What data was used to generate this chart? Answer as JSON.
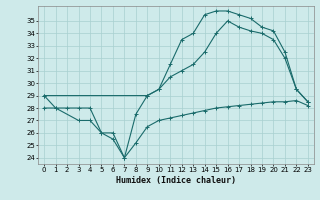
{
  "xlabel": "Humidex (Indice chaleur)",
  "background_color": "#ceeaea",
  "grid_color": "#a8d0d0",
  "line_color": "#1a6b6b",
  "xlim": [
    -0.5,
    23.5
  ],
  "ylim": [
    23.5,
    36.2
  ],
  "xticks": [
    0,
    1,
    2,
    3,
    4,
    5,
    6,
    7,
    8,
    9,
    10,
    11,
    12,
    13,
    14,
    15,
    16,
    17,
    18,
    19,
    20,
    21,
    22,
    23
  ],
  "yticks": [
    24,
    25,
    26,
    27,
    28,
    29,
    30,
    31,
    32,
    33,
    34,
    35
  ],
  "line1_x": [
    0,
    1,
    3,
    4,
    5,
    6,
    7,
    8,
    9,
    10,
    11,
    12,
    13,
    14,
    15,
    16,
    17,
    18,
    19,
    20,
    21,
    22,
    23
  ],
  "line1_y": [
    29,
    28,
    27,
    27,
    26,
    26,
    24,
    27.5,
    29,
    29.5,
    31.5,
    33.5,
    34,
    35.5,
    35.8,
    35.8,
    35.5,
    35.2,
    34.5,
    34.2,
    32.5,
    29.5,
    28.5
  ],
  "line2_x": [
    0,
    9,
    10,
    11,
    12,
    13,
    14,
    15,
    16,
    17,
    18,
    19,
    20,
    21,
    22,
    23
  ],
  "line2_y": [
    29,
    29,
    29.5,
    30.5,
    31,
    31.5,
    32.5,
    34,
    35,
    34.5,
    34.2,
    34.0,
    33.5,
    32.0,
    29.5,
    28.5
  ],
  "line3_x": [
    0,
    1,
    2,
    3,
    4,
    5,
    6,
    7,
    8,
    9,
    10,
    11,
    12,
    13,
    14,
    15,
    16,
    17,
    18,
    19,
    20,
    21,
    22,
    23
  ],
  "line3_y": [
    28,
    28,
    28,
    28,
    28,
    26,
    25.5,
    24,
    25.2,
    26.5,
    27,
    27.2,
    27.4,
    27.6,
    27.8,
    28.0,
    28.1,
    28.2,
    28.3,
    28.4,
    28.5,
    28.5,
    28.6,
    28.2
  ]
}
